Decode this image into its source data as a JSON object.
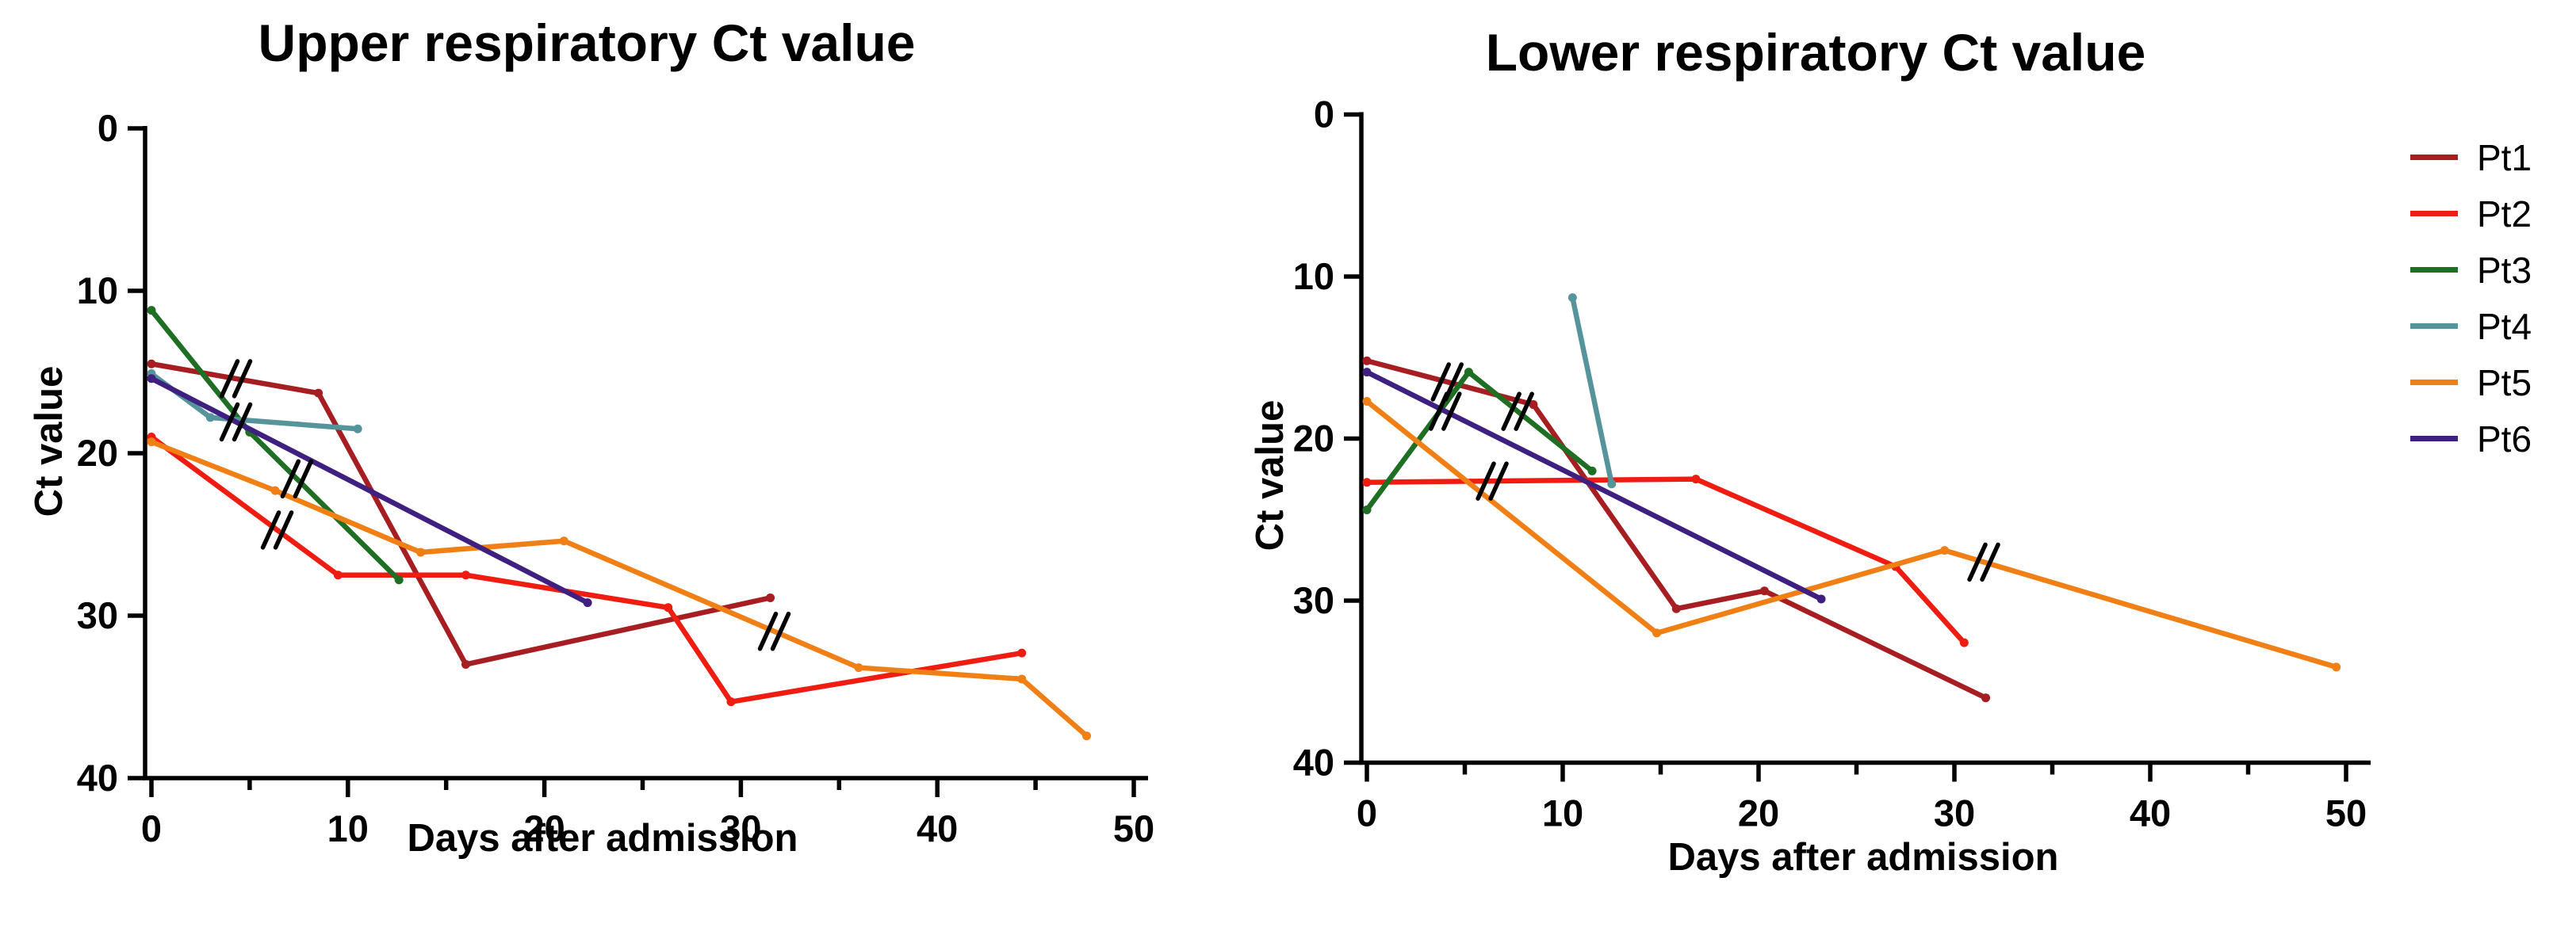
{
  "legend": {
    "items": [
      {
        "label": "Pt1",
        "color": "#A61E22"
      },
      {
        "label": "Pt2",
        "color": "#EF1C12"
      },
      {
        "label": "Pt3",
        "color": "#1E6E24"
      },
      {
        "label": "Pt4",
        "color": "#55949B"
      },
      {
        "label": "Pt5",
        "color": "#F07F16"
      },
      {
        "label": "Pt6",
        "color": "#3F1F7F"
      }
    ]
  },
  "chart_data": [
    {
      "type": "line",
      "title": "Upper respiratory Ct value",
      "xlabel": "Days after admission",
      "ylabel": "Ct value",
      "xlim": [
        0,
        52
      ],
      "ylim": [
        0,
        40
      ],
      "y_inverted": true,
      "x_major_ticks": [
        0,
        10,
        20,
        30,
        40,
        50
      ],
      "x_minor_ticks": [
        5,
        15,
        25,
        35,
        45
      ],
      "y_major_ticks": [
        0,
        10,
        20,
        30,
        40
      ],
      "grid": false,
      "legend_position": "right-of-second-chart",
      "series": [
        {
          "name": "Pt1",
          "color": "#A61E22",
          "points": [
            [
              0,
              14.5
            ],
            [
              8.5,
              16.3
            ],
            [
              16,
              33.0
            ],
            [
              31.5,
              28.9
            ]
          ],
          "break_marks": [
            [
              4.3,
              15.2
            ]
          ]
        },
        {
          "name": "Pt2",
          "color": "#EF1C12",
          "points": [
            [
              0,
              19.0
            ],
            [
              9.5,
              27.5
            ],
            [
              16,
              27.5
            ],
            [
              26.3,
              29.5
            ],
            [
              29.5,
              35.3
            ],
            [
              44.3,
              32.3
            ]
          ],
          "break_marks": [
            [
              6.4,
              24.5
            ]
          ]
        },
        {
          "name": "Pt3",
          "color": "#1E6E24",
          "points": [
            [
              0,
              11.2
            ],
            [
              5,
              18.7
            ],
            [
              12.6,
              27.8
            ]
          ],
          "break_marks": [
            [
              7.4,
              21.4
            ]
          ]
        },
        {
          "name": "Pt4",
          "color": "#55949B",
          "points": [
            [
              0,
              15.1
            ],
            [
              3,
              17.8
            ],
            [
              10.5,
              18.5
            ]
          ],
          "break_marks": []
        },
        {
          "name": "Pt5",
          "color": "#F07F16",
          "points": [
            [
              0,
              19.3
            ],
            [
              6.3,
              22.3
            ],
            [
              13.7,
              26.1
            ],
            [
              21,
              25.4
            ],
            [
              36,
              33.2
            ],
            [
              44.3,
              33.9
            ],
            [
              47.6,
              37.4
            ]
          ],
          "break_marks": [
            [
              31.7,
              31.0
            ]
          ]
        },
        {
          "name": "Pt6",
          "color": "#3F1F7F",
          "points": [
            [
              0,
              15.4
            ],
            [
              22.2,
              29.2
            ]
          ],
          "break_marks": [
            [
              4.3,
              18.2
            ]
          ]
        }
      ]
    },
    {
      "type": "line",
      "title": "Lower respiratory Ct value",
      "xlabel": "Days after admission",
      "ylabel": "Ct value",
      "xlim": [
        0,
        52
      ],
      "ylim": [
        0,
        40
      ],
      "y_inverted": true,
      "x_major_ticks": [
        0,
        10,
        20,
        30,
        40,
        50
      ],
      "x_minor_ticks": [
        5,
        15,
        25,
        35,
        45
      ],
      "y_major_ticks": [
        0,
        10,
        20,
        30,
        40
      ],
      "grid": false,
      "legend_position": "right",
      "series": [
        {
          "name": "Pt1",
          "color": "#A61E22",
          "points": [
            [
              0,
              15.2
            ],
            [
              8.5,
              17.9
            ],
            [
              15.8,
              30.5
            ],
            [
              20.3,
              29.4
            ],
            [
              31.6,
              36.0
            ]
          ],
          "break_marks": [
            [
              4.1,
              16.5
            ]
          ]
        },
        {
          "name": "Pt2",
          "color": "#EF1C12",
          "points": [
            [
              0,
              22.7
            ],
            [
              16.8,
              22.5
            ],
            [
              27,
              27.9
            ],
            [
              30.5,
              32.6
            ]
          ],
          "break_marks": [
            [
              6.4,
              22.4
            ]
          ]
        },
        {
          "name": "Pt3",
          "color": "#1E6E24",
          "points": [
            [
              0,
              24.4
            ],
            [
              5.2,
              15.9
            ],
            [
              11.5,
              22.0
            ]
          ],
          "break_marks": [
            [
              7.7,
              18.4
            ]
          ]
        },
        {
          "name": "Pt4",
          "color": "#55949B",
          "points": [
            [
              10.5,
              11.3
            ],
            [
              12.5,
              22.8
            ]
          ],
          "break_marks": []
        },
        {
          "name": "Pt5",
          "color": "#F07F16",
          "points": [
            [
              0,
              17.7
            ],
            [
              14.8,
              32.0
            ],
            [
              29.5,
              26.9
            ],
            [
              49.5,
              34.1
            ]
          ],
          "break_marks": [
            [
              31.5,
              27.5
            ]
          ]
        },
        {
          "name": "Pt6",
          "color": "#3F1F7F",
          "points": [
            [
              0,
              15.9
            ],
            [
              23.2,
              29.9
            ]
          ],
          "break_marks": [
            [
              4.0,
              18.3
            ]
          ]
        }
      ]
    }
  ]
}
